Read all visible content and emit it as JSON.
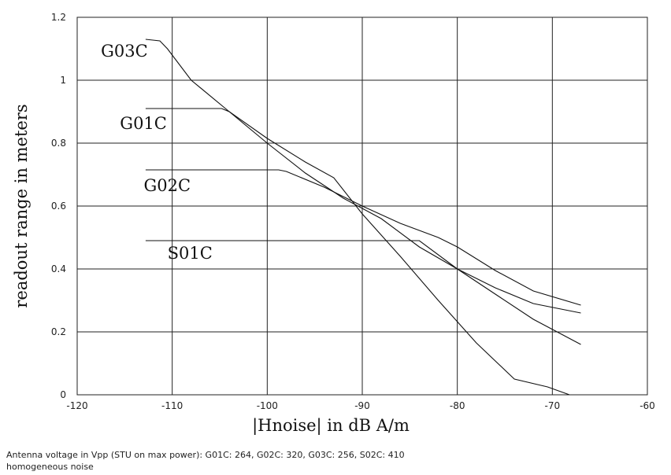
{
  "chart_data": {
    "type": "line",
    "title": "",
    "xlabel": "|Hnoise| in dB A/m",
    "ylabel": "readout range in meters",
    "xlim": [
      -120,
      -60
    ],
    "ylim": [
      0,
      1.2
    ],
    "x_ticks": [
      "-120",
      "-110",
      "-100",
      "-90",
      "-80",
      "-70",
      "-60"
    ],
    "y_ticks": [
      "0",
      "0.2",
      "0.4",
      "0.6",
      "0.8",
      "1",
      "1.2"
    ],
    "grid": true,
    "series": [
      {
        "name": "G03C",
        "x": [
          -112.8,
          -111.3,
          -110.5,
          -108,
          -104,
          -100,
          -96,
          -93,
          -90,
          -86,
          -82,
          -78,
          -74,
          -70.5,
          -68.2
        ],
        "y": [
          1.13,
          1.125,
          1.1,
          1.0,
          0.9,
          0.815,
          0.74,
          0.69,
          0.575,
          0.44,
          0.3,
          0.165,
          0.05,
          0.025,
          0.0
        ]
      },
      {
        "name": "G01C",
        "x": [
          -112.8,
          -104.8,
          -104,
          -100,
          -96,
          -92,
          -88,
          -84,
          -80,
          -76,
          -72,
          -67
        ],
        " y": [
          0.91,
          0.91,
          0.9,
          0.8,
          0.705,
          0.625,
          0.56,
          0.47,
          0.4,
          0.34,
          0.29,
          0.26
        ]
      },
      {
        "name": "G02C",
        "x": [
          -112.8,
          -98.8,
          -98,
          -94,
          -90,
          -86,
          -82,
          -80,
          -76,
          -72,
          -67
        ],
        "y": [
          0.715,
          0.715,
          0.71,
          0.66,
          0.6,
          0.545,
          0.5,
          0.47,
          0.395,
          0.33,
          0.285
        ]
      },
      {
        "name": "S01C",
        "x": [
          -112.8,
          -84,
          -80,
          -76,
          -72,
          -67
        ],
        "y": [
          0.49,
          0.49,
          0.4,
          0.32,
          0.24,
          0.16
        ]
      }
    ]
  },
  "annotations": {
    "line1": "Antenna voltage in Vpp (STU on max power): G01C: 264, G02C: 320, G03C: 256, S02C: 410",
    "line2": "homogeneous noise"
  }
}
